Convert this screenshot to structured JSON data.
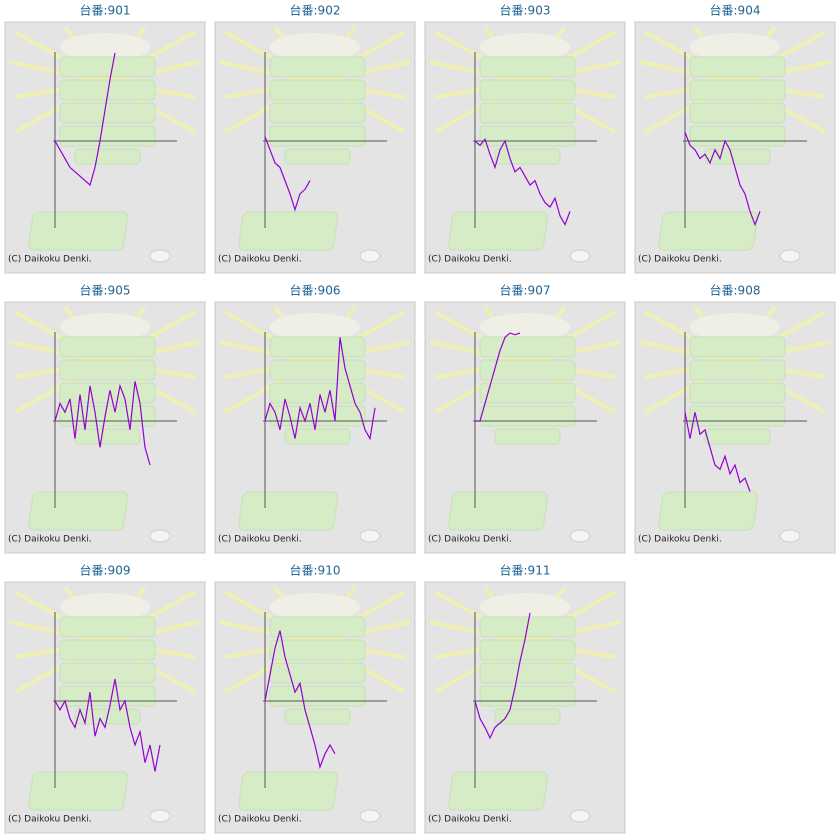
{
  "chart_data": [
    {
      "type": "line",
      "title": "台番:901",
      "note": "(C) Daikoku Denki.",
      "xlim": [
        0,
        24
      ],
      "ylim": [
        -1,
        1
      ],
      "values": [
        0,
        -0.1,
        -0.2,
        -0.3,
        -0.35,
        -0.4,
        -0.45,
        -0.5,
        -0.3,
        0,
        0.35,
        0.7,
        1.0
      ],
      "color": "#9400d3"
    },
    {
      "type": "line",
      "title": "台番:902",
      "note": "(C) Daikoku Denki.",
      "xlim": [
        0,
        24
      ],
      "ylim": [
        -1,
        1
      ],
      "values": [
        0.05,
        -0.1,
        -0.25,
        -0.3,
        -0.45,
        -0.6,
        -0.78,
        -0.6,
        -0.55,
        -0.45
      ],
      "color": "#9400d3"
    },
    {
      "type": "line",
      "title": "台番:903",
      "note": "(C) Daikoku Denki.",
      "xlim": [
        0,
        24
      ],
      "ylim": [
        -1,
        1
      ],
      "values": [
        0,
        -0.05,
        0.02,
        -0.15,
        -0.3,
        -0.1,
        0.0,
        -0.2,
        -0.35,
        -0.3,
        -0.4,
        -0.5,
        -0.45,
        -0.6,
        -0.7,
        -0.75,
        -0.65,
        -0.85,
        -0.95,
        -0.8
      ],
      "color": "#9400d3"
    },
    {
      "type": "line",
      "title": "台番:904",
      "note": "(C) Daikoku Denki.",
      "xlim": [
        0,
        24
      ],
      "ylim": [
        -1,
        1
      ],
      "values": [
        0.1,
        -0.05,
        -0.1,
        -0.2,
        -0.15,
        -0.25,
        -0.1,
        -0.2,
        0.0,
        -0.1,
        -0.3,
        -0.5,
        -0.6,
        -0.8,
        -0.95,
        -0.8
      ],
      "color": "#9400d3"
    },
    {
      "type": "line",
      "title": "台番:905",
      "note": "(C) Daikoku Denki.",
      "xlim": [
        0,
        24
      ],
      "ylim": [
        -1,
        1
      ],
      "values": [
        0,
        0.2,
        0.1,
        0.25,
        -0.2,
        0.3,
        -0.1,
        0.4,
        0.1,
        -0.3,
        0.05,
        0.35,
        0.1,
        0.4,
        0.25,
        -0.1,
        0.45,
        0.2,
        -0.3,
        -0.5
      ],
      "color": "#9400d3"
    },
    {
      "type": "line",
      "title": "台番:906",
      "note": "(C) Daikoku Denki.",
      "xlim": [
        0,
        24
      ],
      "ylim": [
        -1,
        1
      ],
      "values": [
        0,
        0.2,
        0.1,
        -0.1,
        0.25,
        0.05,
        -0.2,
        0.15,
        0.0,
        0.2,
        -0.1,
        0.3,
        0.1,
        0.35,
        0.0,
        0.95,
        0.6,
        0.4,
        0.2,
        0.1,
        -0.1,
        -0.2,
        0.15
      ],
      "color": "#9400d3"
    },
    {
      "type": "line",
      "title": "台番:907",
      "note": "(C) Daikoku Denki.",
      "xlim": [
        0,
        24
      ],
      "ylim": [
        -1,
        1
      ],
      "values": [
        0,
        0,
        0.2,
        0.4,
        0.6,
        0.8,
        0.95,
        1.0,
        0.98,
        1.0
      ],
      "color": "#9400d3"
    },
    {
      "type": "line",
      "title": "台番:908",
      "note": "(C) Daikoku Denki.",
      "xlim": [
        0,
        24
      ],
      "ylim": [
        -1,
        1
      ],
      "values": [
        0.1,
        -0.2,
        0.1,
        -0.15,
        -0.1,
        -0.3,
        -0.5,
        -0.55,
        -0.4,
        -0.6,
        -0.5,
        -0.7,
        -0.65,
        -0.8
      ],
      "color": "#9400d3"
    },
    {
      "type": "line",
      "title": "台番:909",
      "note": "(C) Daikoku Denki.",
      "xlim": [
        0,
        24
      ],
      "ylim": [
        -1,
        1
      ],
      "values": [
        0,
        -0.1,
        0.0,
        -0.2,
        -0.3,
        -0.1,
        -0.25,
        0.1,
        -0.4,
        -0.2,
        -0.3,
        -0.05,
        0.25,
        -0.1,
        0.0,
        -0.3,
        -0.5,
        -0.35,
        -0.7,
        -0.5,
        -0.8,
        -0.5
      ],
      "color": "#9400d3"
    },
    {
      "type": "line",
      "title": "台番:910",
      "note": "(C) Daikoku Denki.",
      "xlim": [
        0,
        24
      ],
      "ylim": [
        -1,
        1
      ],
      "values": [
        0,
        0.3,
        0.6,
        0.8,
        0.5,
        0.3,
        0.1,
        0.2,
        -0.1,
        -0.3,
        -0.5,
        -0.75,
        -0.6,
        -0.5,
        -0.6
      ],
      "color": "#9400d3"
    },
    {
      "type": "line",
      "title": "台番:911",
      "note": "(C) Daikoku Denki.",
      "xlim": [
        0,
        24
      ],
      "ylim": [
        -1,
        1
      ],
      "values": [
        0,
        -0.2,
        -0.3,
        -0.42,
        -0.3,
        -0.25,
        -0.2,
        -0.1,
        0.15,
        0.45,
        0.7,
        1.0
      ],
      "color": "#9400d3"
    }
  ]
}
